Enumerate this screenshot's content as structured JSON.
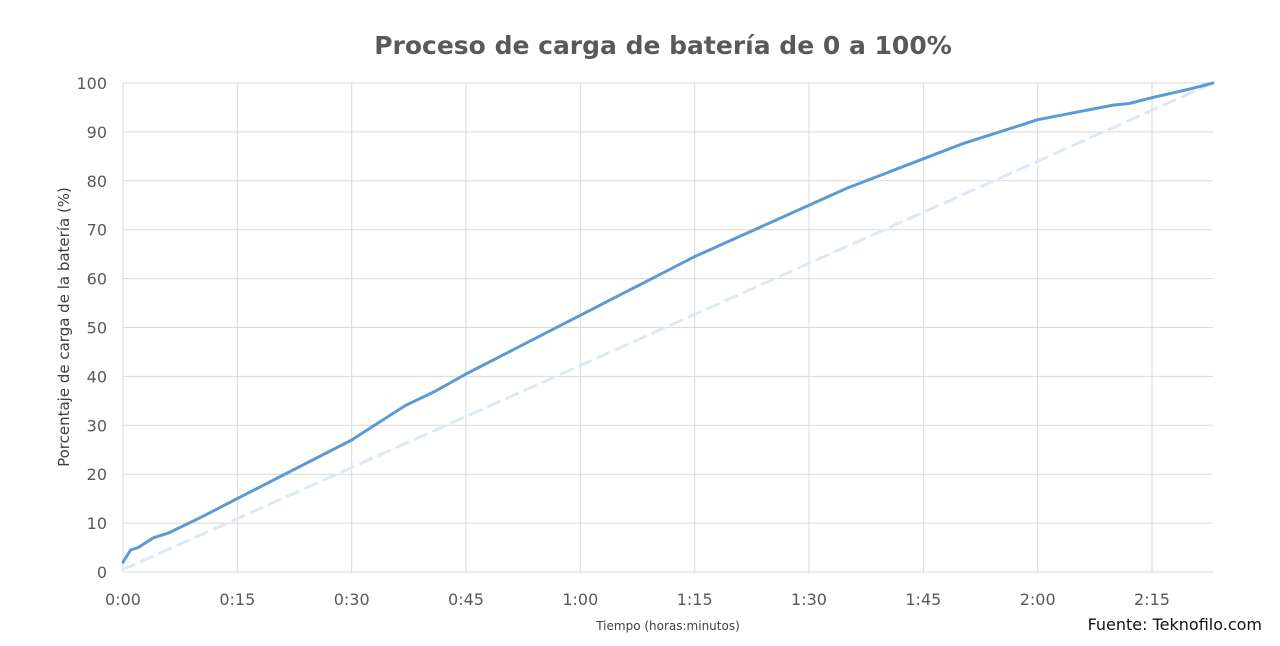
{
  "source_note": "Fuente: Teknofilo.com",
  "colors": {
    "grid": "#d9d9d9",
    "series_main": "#5b9bd5",
    "series_reference": "#dce8f6"
  },
  "chart_data": {
    "type": "line",
    "title": "Proceso de carga de batería de 0 a 100%",
    "xlabel": "Tiempo (horas:minutos)",
    "ylabel": "Porcentaje de carga de la batería (%)",
    "xlim": [
      0,
      143
    ],
    "ylim": [
      0,
      100
    ],
    "x_ticks": [
      {
        "value": 0,
        "label": "0:00"
      },
      {
        "value": 15,
        "label": "0:15"
      },
      {
        "value": 30,
        "label": "0:30"
      },
      {
        "value": 45,
        "label": "0:45"
      },
      {
        "value": 60,
        "label": "1:00"
      },
      {
        "value": 75,
        "label": "1:15"
      },
      {
        "value": 90,
        "label": "1:30"
      },
      {
        "value": 105,
        "label": "1:45"
      },
      {
        "value": 120,
        "label": "2:00"
      },
      {
        "value": 135,
        "label": "2:15"
      }
    ],
    "y_ticks": [
      0,
      10,
      20,
      30,
      40,
      50,
      60,
      70,
      80,
      90,
      100
    ],
    "grid": true,
    "series": [
      {
        "style": "solid",
        "x": [
          0,
          1,
          2,
          4,
          6,
          10,
          15,
          20,
          25,
          30,
          33,
          37,
          41,
          45,
          50,
          55,
          60,
          65,
          70,
          75,
          80,
          85,
          90,
          95,
          100,
          105,
          110,
          115,
          120,
          125,
          130,
          132,
          135,
          140,
          143
        ],
        "y": [
          2,
          4.5,
          5,
          7,
          8,
          11,
          15,
          19,
          23,
          27,
          30,
          34,
          37,
          40.5,
          44.5,
          48.5,
          52.5,
          56.5,
          60.5,
          64.5,
          68,
          71.5,
          75,
          78.5,
          81.5,
          84.5,
          87.5,
          90,
          92.5,
          94,
          95.5,
          95.8,
          97,
          98.8,
          100
        ]
      },
      {
        "style": "dashed",
        "x": [
          0,
          143
        ],
        "y": [
          0.5,
          100
        ]
      }
    ]
  }
}
